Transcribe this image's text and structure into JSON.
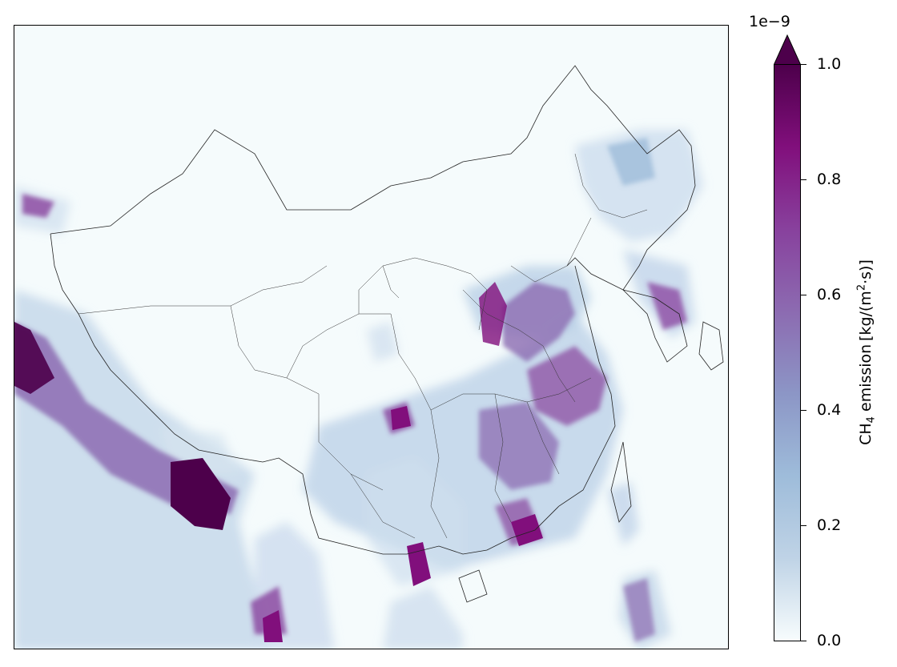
{
  "map": {
    "region": "China and surrounding region",
    "layer": "CH4 emission"
  },
  "colorbar": {
    "exponent_label": "1e−9",
    "ticks": [
      "0.0",
      "0.2",
      "0.4",
      "0.6",
      "0.8",
      "1.0"
    ],
    "title_prefix": "CH",
    "title_sub": "4",
    "title_mid": " emission [kg/(m",
    "title_sup": "2",
    "title_suffix": "·s)]",
    "extend": "max",
    "colors": [
      "#f7fcfd",
      "#bfd3e6",
      "#9ebcda",
      "#8c96c6",
      "#8c6bb1",
      "#88419d",
      "#810f7c",
      "#4d004b"
    ]
  }
}
